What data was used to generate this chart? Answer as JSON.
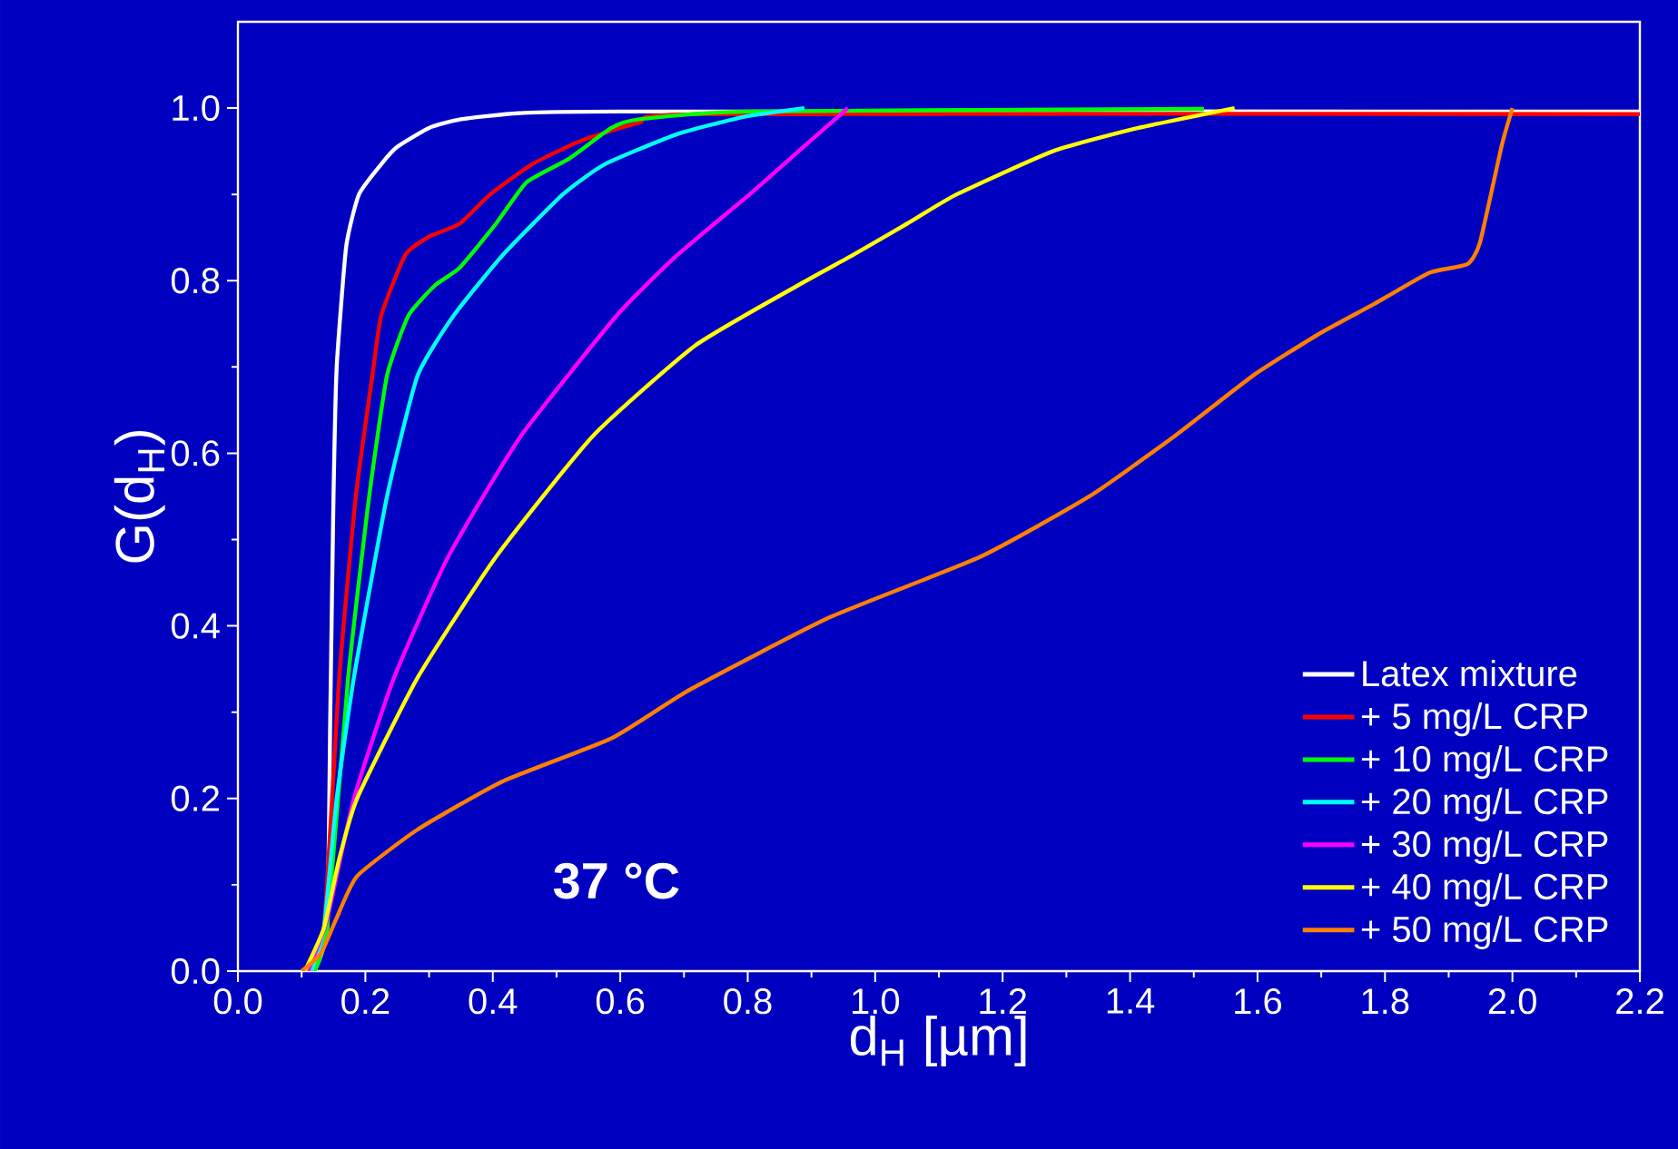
{
  "chart_data": {
    "type": "line",
    "xlabel": "d$_{H}$ [µm]",
    "ylabel": "G(d$_{H}$)",
    "annotations": [
      "37 °C"
    ],
    "xlim": [
      0,
      2.2
    ],
    "ylim": [
      0,
      1.1
    ],
    "xticks": [
      {
        "value": 0,
        "label": "0.0"
      },
      {
        "value": 0.2,
        "label": "0.2"
      },
      {
        "value": 0.4,
        "label": "0.4"
      },
      {
        "value": 0.6,
        "label": "0.6"
      },
      {
        "value": 0.8,
        "label": "0.8"
      },
      {
        "value": 1.0,
        "label": "1.0"
      },
      {
        "value": 1.2,
        "label": "1.2"
      },
      {
        "value": 1.4,
        "label": "1.4"
      },
      {
        "value": 1.6,
        "label": "1.6"
      },
      {
        "value": 1.8,
        "label": "1.8"
      },
      {
        "value": 2.0,
        "label": "2.0"
      },
      {
        "value": 2.2,
        "label": "2.2"
      }
    ],
    "yticks": [
      {
        "value": 0,
        "label": "0.0"
      },
      {
        "value": 0.2,
        "label": "0.2"
      },
      {
        "value": 0.4,
        "label": "0.4"
      },
      {
        "value": 0.6,
        "label": "0.6"
      },
      {
        "value": 0.8,
        "label": "0.8"
      },
      {
        "value": 1.0,
        "label": "1.0"
      }
    ],
    "grid": false,
    "legend": "bottom right",
    "marker": "none",
    "line_style": "solid",
    "series": [
      {
        "name": "Latex mixture",
        "color": "#ffffff",
        "x": [
          0.12,
          0.14,
          0.145,
          0.15,
          0.155,
          0.17,
          0.19,
          0.225,
          0.25,
          0.3,
          0.35,
          0.44,
          0.6,
          2.2
        ],
        "values": [
          0,
          0.05,
          0.3,
          0.55,
          0.7,
          0.84,
          0.9,
          0.935,
          0.955,
          0.977,
          0.987,
          0.994,
          0.996,
          0.996
        ]
      },
      {
        "name": "+ 5 mg/L CRP",
        "color": "#ff0000",
        "x": [
          0.11,
          0.135,
          0.159,
          0.185,
          0.211,
          0.225,
          0.263,
          0.3,
          0.348,
          0.396,
          0.462,
          0.538,
          0.63,
          0.73,
          2.2
        ],
        "values": [
          0,
          0.05,
          0.34,
          0.55,
          0.69,
          0.76,
          0.83,
          0.851,
          0.866,
          0.9,
          0.935,
          0.962,
          0.983,
          0.993,
          0.993
        ]
      },
      {
        "name": "+ 10 mg/L CRP",
        "color": "#00ff00",
        "x": [
          0.12,
          0.14,
          0.173,
          0.206,
          0.234,
          0.268,
          0.31,
          0.348,
          0.405,
          0.453,
          0.519,
          0.586,
          0.63,
          0.8,
          1.516
        ],
        "values": [
          0,
          0.05,
          0.34,
          0.55,
          0.69,
          0.76,
          0.795,
          0.815,
          0.866,
          0.914,
          0.941,
          0.977,
          0.987,
          0.996,
          0.999
        ]
      },
      {
        "name": "+ 20 mg/L CRP",
        "color": "#00ffff",
        "x": [
          0.115,
          0.135,
          0.155,
          0.182,
          0.234,
          0.282,
          0.339,
          0.416,
          0.51,
          0.576,
          0.69,
          0.795,
          0.889
        ],
        "values": [
          0,
          0.05,
          0.2,
          0.34,
          0.55,
          0.69,
          0.76,
          0.83,
          0.9,
          0.935,
          0.97,
          0.99,
          1.0
        ]
      },
      {
        "name": "+ 30 mg/L CRP",
        "color": "#ff00ff",
        "x": [
          0.11,
          0.14,
          0.182,
          0.245,
          0.33,
          0.444,
          0.595,
          0.69,
          0.803,
          0.889,
          0.957
        ],
        "values": [
          0,
          0.06,
          0.2,
          0.34,
          0.48,
          0.62,
          0.76,
          0.83,
          0.9,
          0.956,
          1.0
        ]
      },
      {
        "name": "+ 40 mg/L CRP",
        "color": "#ffff00",
        "x": [
          0.105,
          0.135,
          0.159,
          0.187,
          0.282,
          0.405,
          0.557,
          0.718,
          0.88,
          0.966,
          1.05,
          1.128,
          1.279,
          1.413,
          1.564
        ],
        "values": [
          0,
          0.05,
          0.13,
          0.2,
          0.34,
          0.48,
          0.62,
          0.725,
          0.795,
          0.83,
          0.866,
          0.9,
          0.95,
          0.977,
          1.0
        ]
      },
      {
        "name": "+ 50 mg/L CRP",
        "color": "#ff8000",
        "x": [
          0.1,
          0.13,
          0.154,
          0.187,
          0.282,
          0.416,
          0.587,
          0.709,
          0.929,
          1.165,
          1.336,
          1.47,
          1.593,
          1.698,
          1.783,
          1.869,
          1.929,
          1.949,
          1.983,
          2.0
        ],
        "values": [
          0,
          0.02,
          0.06,
          0.11,
          0.164,
          0.22,
          0.27,
          0.326,
          0.41,
          0.48,
          0.55,
          0.62,
          0.69,
          0.739,
          0.773,
          0.809,
          0.819,
          0.844,
          0.956,
          1.0
        ]
      }
    ]
  }
}
